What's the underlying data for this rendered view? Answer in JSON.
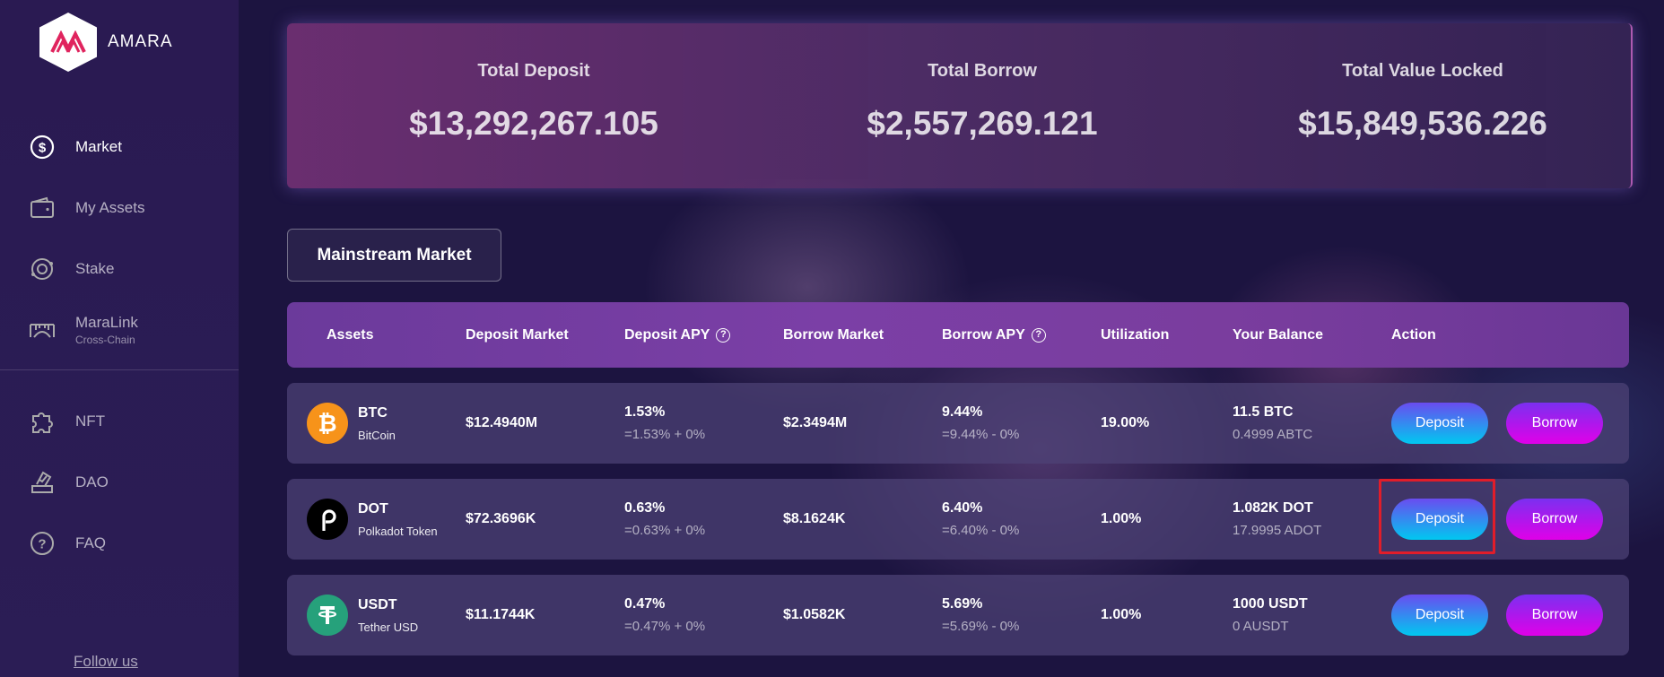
{
  "brand": {
    "name": "AMARA"
  },
  "sidebar": {
    "items": [
      {
        "label": "Market",
        "icon": "dollar-circle-icon",
        "active": true
      },
      {
        "label": "My Assets",
        "icon": "wallet-icon"
      },
      {
        "label": "Stake",
        "icon": "stake-icon"
      },
      {
        "label": "MaraLink",
        "sub": "Cross-Chain",
        "icon": "bridge-icon"
      }
    ],
    "items2": [
      {
        "label": "NFT",
        "icon": "puzzle-icon"
      },
      {
        "label": "DAO",
        "icon": "vote-icon"
      },
      {
        "label": "FAQ",
        "icon": "question-icon"
      }
    ],
    "follow": "Follow us"
  },
  "stats": {
    "deposit": {
      "title": "Total Deposit",
      "value": "$13,292,267.105"
    },
    "borrow": {
      "title": "Total Borrow",
      "value": "$2,557,269.121"
    },
    "tvl": {
      "title": "Total Value Locked",
      "value": "$15,849,536.226"
    }
  },
  "market_button": "Mainstream Market",
  "table": {
    "headers": {
      "assets": "Assets",
      "deposit_market": "Deposit Market",
      "deposit_apy": "Deposit APY",
      "borrow_market": "Borrow Market",
      "borrow_apy": "Borrow APY",
      "utilization": "Utilization",
      "balance": "Your Balance",
      "action": "Action"
    },
    "rows": [
      {
        "symbol": "BTC",
        "name": "BitCoin",
        "icon": "bitcoin-icon",
        "color": "#f7931a",
        "deposit_market": "$12.4940M",
        "deposit_apy": "1.53%",
        "deposit_apy_detail": "=1.53% + 0%",
        "borrow_market": "$2.3494M",
        "borrow_apy": "9.44%",
        "borrow_apy_detail": "=9.44% - 0%",
        "utilization": "19.00%",
        "balance": "11.5 BTC",
        "balance_sub": "0.4999 ABTC",
        "deposit_label": "Deposit",
        "borrow_label": "Borrow"
      },
      {
        "symbol": "DOT",
        "name": "Polkadot Token",
        "icon": "polkadot-icon",
        "color": "#000000",
        "deposit_market": "$72.3696K",
        "deposit_apy": "0.63%",
        "deposit_apy_detail": "=0.63% + 0%",
        "borrow_market": "$8.1624K",
        "borrow_apy": "6.40%",
        "borrow_apy_detail": "=6.40% - 0%",
        "utilization": "1.00%",
        "balance": "1.082K DOT",
        "balance_sub": "17.9995 ADOT",
        "deposit_label": "Deposit",
        "borrow_label": "Borrow"
      },
      {
        "symbol": "USDT",
        "name": "Tether USD",
        "icon": "tether-icon",
        "color": "#26a17b",
        "deposit_market": "$11.1744K",
        "deposit_apy": "0.47%",
        "deposit_apy_detail": "=0.47% + 0%",
        "borrow_market": "$1.0582K",
        "borrow_apy": "5.69%",
        "borrow_apy_detail": "=5.69% - 0%",
        "utilization": "1.00%",
        "balance": "1000 USDT",
        "balance_sub": "0 AUSDT",
        "deposit_label": "Deposit",
        "borrow_label": "Borrow"
      }
    ]
  }
}
